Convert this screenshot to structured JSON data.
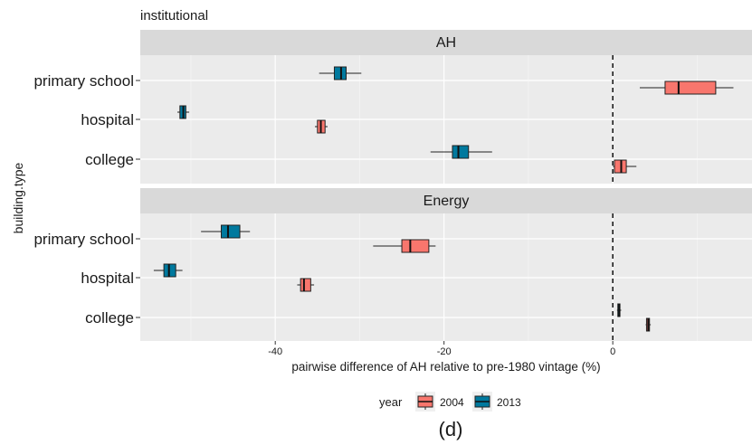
{
  "chart_data": {
    "type": "boxplot",
    "title": "institutional",
    "xlabel": "pairwise difference of AH relative to pre-1980 vintage (%)",
    "ylabel": "building.type",
    "xlim": [
      -56,
      16.5
    ],
    "x_ticks": [
      -40,
      -20,
      0
    ],
    "reference_line_x": 0,
    "grid": true,
    "legend": {
      "title": "year",
      "position": "bottom",
      "entries": [
        {
          "label": "2004",
          "color": "#F8766D"
        },
        {
          "label": "2013",
          "color": "#00799E"
        }
      ]
    },
    "categories": [
      "primary school",
      "hospital",
      "college"
    ],
    "panels": [
      {
        "label": "AH",
        "boxes": [
          {
            "category": "primary school",
            "year": "2013",
            "min": -34.8,
            "q1": -33.0,
            "median": -32.2,
            "q3": -31.6,
            "max": -29.8
          },
          {
            "category": "primary school",
            "year": "2004",
            "min": 3.2,
            "q1": 6.2,
            "median": 7.8,
            "q3": 12.2,
            "max": 14.3
          },
          {
            "category": "hospital",
            "year": "2013",
            "min": -51.6,
            "q1": -51.3,
            "median": -50.9,
            "q3": -50.6,
            "max": -50.2
          },
          {
            "category": "hospital",
            "year": "2004",
            "min": -35.3,
            "q1": -35.0,
            "median": -34.6,
            "q3": -34.1,
            "max": -33.8
          },
          {
            "category": "college",
            "year": "2013",
            "min": -21.6,
            "q1": -19.0,
            "median": -18.3,
            "q3": -17.1,
            "max": -14.3
          },
          {
            "category": "college",
            "year": "2004",
            "min": 0.0,
            "q1": 0.2,
            "median": 1.0,
            "q3": 1.6,
            "max": 2.8
          }
        ]
      },
      {
        "label": "Energy",
        "boxes": [
          {
            "category": "primary school",
            "year": "2013",
            "min": -48.8,
            "q1": -46.4,
            "median": -45.6,
            "q3": -44.2,
            "max": -43.0
          },
          {
            "category": "primary school",
            "year": "2004",
            "min": -28.4,
            "q1": -25.0,
            "median": -24.0,
            "q3": -21.8,
            "max": -21.0
          },
          {
            "category": "hospital",
            "year": "2013",
            "min": -54.4,
            "q1": -53.2,
            "median": -52.6,
            "q3": -51.8,
            "max": -51.0
          },
          {
            "category": "hospital",
            "year": "2004",
            "min": -37.4,
            "q1": -37.0,
            "median": -36.6,
            "q3": -35.8,
            "max": -35.4
          },
          {
            "category": "college",
            "year": "2013",
            "min": 0.5,
            "q1": 0.6,
            "median": 0.75,
            "q3": 0.85,
            "max": 1.0
          },
          {
            "category": "college",
            "year": "2004",
            "min": 3.9,
            "q1": 4.0,
            "median": 4.2,
            "q3": 4.35,
            "max": 4.5
          }
        ]
      }
    ]
  },
  "caption": "(d)"
}
